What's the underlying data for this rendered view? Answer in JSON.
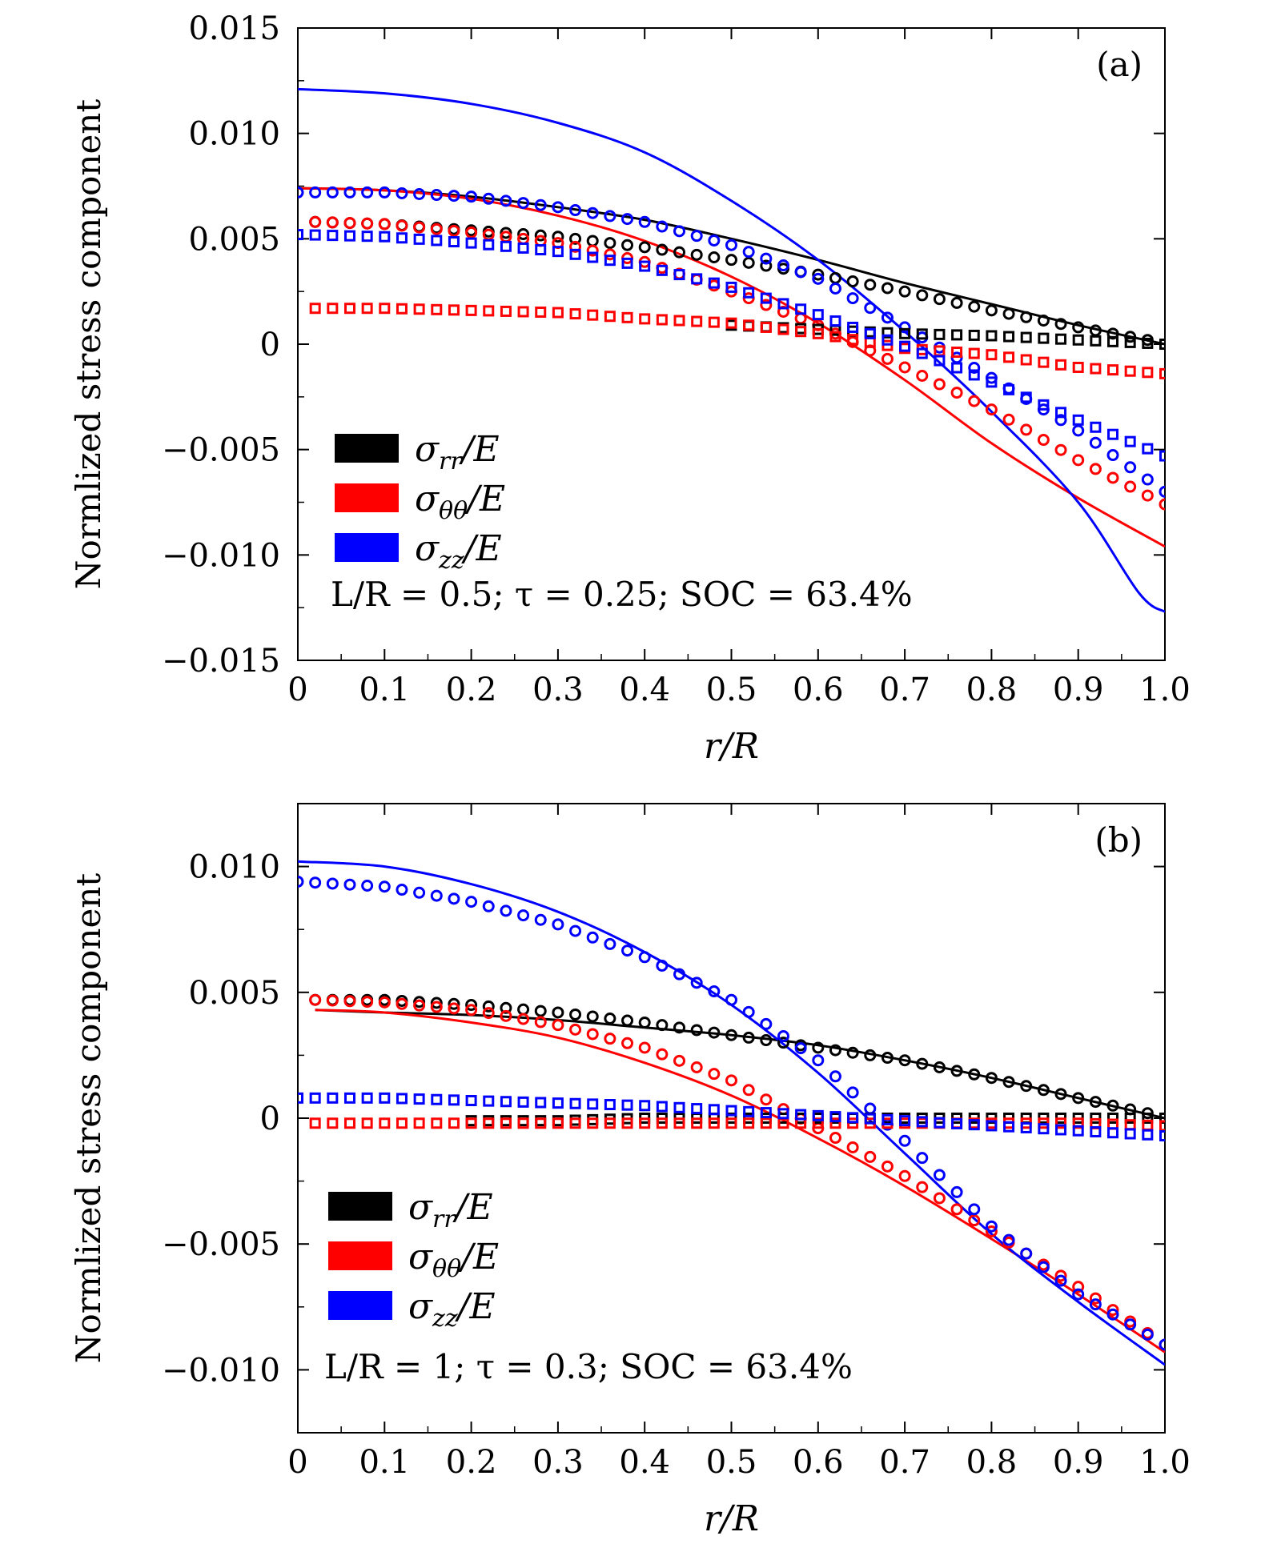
{
  "figure": {
    "ylabel": "Normlized stress component",
    "xlabel": "r/R"
  },
  "chart_data": [
    {
      "type": "line",
      "panel_label": "(a)",
      "annotation": "L/R = 0.5; τ = 0.25; SOC = 63.4%",
      "xlabel": "r/R",
      "ylabel": "Normlized stress component",
      "xlim": [
        0,
        1.0
      ],
      "ylim": [
        -0.015,
        0.015
      ],
      "xticks": [
        0,
        0.1,
        0.2,
        0.3,
        0.4,
        0.5,
        0.6,
        0.7,
        0.8,
        0.9,
        1.0
      ],
      "xtick_labels": [
        "0",
        "0.1",
        "0.2",
        "0.3",
        "0.4",
        "0.5",
        "0.6",
        "0.7",
        "0.8",
        "0.9",
        "1.0"
      ],
      "yticks": [
        -0.015,
        -0.01,
        -0.005,
        0,
        0.005,
        0.01,
        0.015
      ],
      "ytick_labels": [
        "−0.015",
        "−0.010",
        "−0.005",
        "0",
        "0.005",
        "0.010",
        "0.015"
      ],
      "legend": [
        {
          "symbol": "σ",
          "sub": "rr",
          "tail": "/E",
          "color": "#000000"
        },
        {
          "symbol": "σ",
          "sub": "θθ",
          "tail": "/E",
          "color": "#ff0000"
        },
        {
          "symbol": "σ",
          "sub": "zz",
          "tail": "/E",
          "color": "#0000ff"
        }
      ],
      "legend_position": "lower-left",
      "series": [
        {
          "name": "σrr/E solid",
          "color": "#000000",
          "style": "line",
          "x": [
            0,
            0.1,
            0.2,
            0.3,
            0.4,
            0.5,
            0.6,
            0.7,
            0.8,
            0.9,
            1.0
          ],
          "y": [
            0.0074,
            0.0073,
            0.007,
            0.0065,
            0.0059,
            0.005,
            0.004,
            0.0029,
            0.0019,
            0.0009,
            0.0
          ]
        },
        {
          "name": "σθθ/E solid",
          "color": "#ff0000",
          "style": "line",
          "x": [
            0,
            0.1,
            0.2,
            0.3,
            0.4,
            0.5,
            0.6,
            0.7,
            0.8,
            0.9,
            1.0
          ],
          "y": [
            0.0074,
            0.0073,
            0.0069,
            0.0061,
            0.0049,
            0.0032,
            0.001,
            -0.0017,
            -0.0047,
            -0.0073,
            -0.0096
          ]
        },
        {
          "name": "σzz/E solid",
          "color": "#0000ff",
          "style": "line",
          "x": [
            0,
            0.1,
            0.2,
            0.3,
            0.4,
            0.5,
            0.6,
            0.7,
            0.8,
            0.9,
            0.97,
            1.0
          ],
          "y": [
            0.0121,
            0.0119,
            0.0114,
            0.0105,
            0.0091,
            0.0068,
            0.004,
            0.0006,
            -0.0032,
            -0.0075,
            -0.0118,
            -0.0127
          ]
        },
        {
          "name": "σrr/E circles",
          "color": "#000000",
          "style": "circle",
          "x": [
            0.02,
            0.1,
            0.2,
            0.3,
            0.4,
            0.5,
            0.6,
            0.7,
            0.8,
            0.9,
            0.98
          ],
          "y": [
            0.0058,
            0.0057,
            0.0054,
            0.0051,
            0.0046,
            0.004,
            0.0033,
            0.0025,
            0.0016,
            0.0008,
            0.0002
          ]
        },
        {
          "name": "σθθ/E circles",
          "color": "#ff0000",
          "style": "circle",
          "x": [
            0.02,
            0.1,
            0.2,
            0.3,
            0.4,
            0.5,
            0.6,
            0.7,
            0.8,
            0.9,
            1.0
          ],
          "y": [
            0.0058,
            0.0057,
            0.0053,
            0.0048,
            0.0039,
            0.0025,
            0.0009,
            -0.0011,
            -0.0031,
            -0.0055,
            -0.0076
          ]
        },
        {
          "name": "σzz/E circles",
          "color": "#0000ff",
          "style": "circle",
          "x": [
            0.0,
            0.1,
            0.2,
            0.3,
            0.4,
            0.5,
            0.6,
            0.7,
            0.8,
            0.9,
            1.0
          ],
          "y": [
            0.0072,
            0.0072,
            0.007,
            0.0065,
            0.0058,
            0.0047,
            0.0031,
            0.0008,
            -0.0016,
            -0.0041,
            -0.007
          ]
        },
        {
          "name": "σrr/E squares",
          "color": "#000000",
          "style": "square",
          "x": [
            0.5,
            0.6,
            0.7,
            0.8,
            0.9,
            1.0
          ],
          "y": [
            0.0009,
            0.0007,
            0.0005,
            0.0004,
            0.0002,
            0.0
          ]
        },
        {
          "name": "σθθ/E squares",
          "color": "#ff0000",
          "style": "square",
          "x": [
            0.02,
            0.1,
            0.2,
            0.3,
            0.4,
            0.5,
            0.6,
            0.7,
            0.8,
            0.9,
            1.0
          ],
          "y": [
            0.0017,
            0.0017,
            0.0016,
            0.0015,
            0.0012,
            0.001,
            0.0005,
            -0.0002,
            -0.0005,
            -0.0011,
            -0.0014
          ]
        },
        {
          "name": "σzz/E squares",
          "color": "#0000ff",
          "style": "square",
          "x": [
            0.0,
            0.1,
            0.2,
            0.3,
            0.4,
            0.5,
            0.6,
            0.7,
            0.8,
            0.9,
            1.0
          ],
          "y": [
            0.0052,
            0.0051,
            0.0048,
            0.0044,
            0.0037,
            0.0027,
            0.0014,
            -0.0001,
            -0.0018,
            -0.0036,
            -0.0053
          ]
        }
      ]
    },
    {
      "type": "line",
      "panel_label": "(b)",
      "annotation": "L/R = 1; τ = 0.3; SOC = 63.4%",
      "xlabel": "r/R",
      "ylabel": "Normlized stress component",
      "xlim": [
        0,
        1.0
      ],
      "ylim": [
        -0.0125,
        0.0125
      ],
      "xticks": [
        0,
        0.1,
        0.2,
        0.3,
        0.4,
        0.5,
        0.6,
        0.7,
        0.8,
        0.9,
        1.0
      ],
      "xtick_labels": [
        "0",
        "0.1",
        "0.2",
        "0.3",
        "0.4",
        "0.5",
        "0.6",
        "0.7",
        "0.8",
        "0.9",
        "1.0"
      ],
      "yticks": [
        -0.01,
        -0.005,
        0,
        0.005,
        0.01
      ],
      "ytick_labels": [
        "−0.010",
        "−0.005",
        "0",
        "0.005",
        "0.010"
      ],
      "legend": [
        {
          "symbol": "σ",
          "sub": "rr",
          "tail": "/E",
          "color": "#000000"
        },
        {
          "symbol": "σ",
          "sub": "θθ",
          "tail": "/E",
          "color": "#ff0000"
        },
        {
          "symbol": "σ",
          "sub": "zz",
          "tail": "/E",
          "color": "#0000ff"
        }
      ],
      "legend_position": "lower-left",
      "series": [
        {
          "name": "σrr/E solid",
          "color": "#000000",
          "style": "line",
          "x": [
            0.02,
            0.1,
            0.2,
            0.3,
            0.4,
            0.5,
            0.6,
            0.7,
            0.8,
            0.9,
            1.0
          ],
          "y": [
            0.0043,
            0.0042,
            0.0041,
            0.0039,
            0.0036,
            0.0033,
            0.0029,
            0.0023,
            0.0016,
            0.0008,
            0.0
          ]
        },
        {
          "name": "σθθ/E solid",
          "color": "#ff0000",
          "style": "line",
          "x": [
            0.02,
            0.1,
            0.2,
            0.3,
            0.4,
            0.5,
            0.6,
            0.7,
            0.8,
            0.9,
            1.0
          ],
          "y": [
            0.0043,
            0.0042,
            0.0038,
            0.0032,
            0.0022,
            0.0009,
            -0.0008,
            -0.0027,
            -0.0048,
            -0.007,
            -0.0093
          ]
        },
        {
          "name": "σzz/E solid",
          "color": "#0000ff",
          "style": "line",
          "x": [
            0.0,
            0.1,
            0.2,
            0.3,
            0.4,
            0.5,
            0.6,
            0.7,
            0.8,
            0.9,
            1.0
          ],
          "y": [
            0.0102,
            0.01,
            0.0093,
            0.0082,
            0.0066,
            0.0045,
            0.0018,
            -0.0014,
            -0.0046,
            -0.0073,
            -0.0098
          ]
        },
        {
          "name": "σrr/E circles",
          "color": "#000000",
          "style": "circle",
          "x": [
            0.02,
            0.1,
            0.2,
            0.3,
            0.4,
            0.5,
            0.6,
            0.7,
            0.8,
            0.9,
            0.98
          ],
          "y": [
            0.0047,
            0.0047,
            0.0045,
            0.0042,
            0.0038,
            0.0033,
            0.0028,
            0.0023,
            0.0016,
            0.0008,
            0.0002
          ]
        },
        {
          "name": "σθθ/E circles",
          "color": "#ff0000",
          "style": "circle",
          "x": [
            0.02,
            0.1,
            0.2,
            0.3,
            0.4,
            0.5,
            0.6,
            0.7,
            0.8,
            0.9,
            1.0
          ],
          "y": [
            0.0047,
            0.0046,
            0.0043,
            0.0037,
            0.0028,
            0.0015,
            -0.0004,
            -0.0023,
            -0.0045,
            -0.0067,
            -0.009
          ]
        },
        {
          "name": "σzz/E circles",
          "color": "#0000ff",
          "style": "circle",
          "x": [
            0.0,
            0.1,
            0.2,
            0.3,
            0.4,
            0.5,
            0.6,
            0.7,
            0.8,
            0.9,
            1.0
          ],
          "y": [
            0.0094,
            0.0092,
            0.0086,
            0.0077,
            0.0064,
            0.0047,
            0.0023,
            -0.0009,
            -0.0043,
            -0.007,
            -0.009
          ]
        },
        {
          "name": "σrr/E squares",
          "color": "#000000",
          "style": "square",
          "x": [
            0.2,
            0.3,
            0.4,
            0.5,
            0.6,
            0.7,
            0.8,
            0.9,
            1.0
          ],
          "y": [
            -0.0001,
            -0.0001,
            0.0,
            0.0,
            0.0,
            0.0,
            0.0,
            0.0,
            0.0
          ]
        },
        {
          "name": "σθθ/E squares",
          "color": "#ff0000",
          "style": "square",
          "x": [
            0.02,
            0.1,
            0.2,
            0.3,
            0.4,
            0.5,
            0.6,
            0.7,
            0.8,
            0.9,
            1.0
          ],
          "y": [
            -0.0002,
            -0.0002,
            -0.0002,
            -0.0002,
            -0.0002,
            -0.0002,
            -0.0002,
            -0.0002,
            -0.0002,
            -0.0002,
            -0.0003
          ]
        },
        {
          "name": "σzz/E squares",
          "color": "#0000ff",
          "style": "square",
          "x": [
            0.0,
            0.1,
            0.2,
            0.3,
            0.4,
            0.5,
            0.6,
            0.7,
            0.8,
            0.9,
            1.0
          ],
          "y": [
            0.0008,
            0.0008,
            0.0007,
            0.0006,
            0.0005,
            0.0003,
            0.0001,
            -0.0001,
            -0.0003,
            -0.0005,
            -0.0007
          ]
        }
      ]
    }
  ]
}
